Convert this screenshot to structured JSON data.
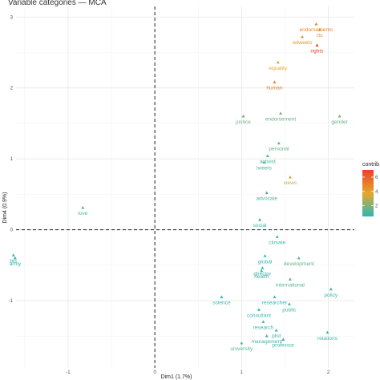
{
  "chart_data": {
    "type": "scatter",
    "title": "Variable categories — MCA",
    "xlabel": "Dim1 (1.7%)",
    "ylabel": "Dim4 (0.9%)",
    "xlim": [
      -1.6,
      2.3
    ],
    "ylim": [
      -1.95,
      3.15
    ],
    "xticks": [
      -1,
      0,
      1,
      2
    ],
    "yticks": [
      -1,
      0,
      1,
      2,
      3
    ],
    "grid": true,
    "reference_lines": {
      "x": 0,
      "y": 0,
      "style": "dashed"
    },
    "color_scale": {
      "title": "contrib",
      "ticks": [
        2,
        4,
        6
      ],
      "range": [
        0.5,
        7
      ],
      "colors": [
        "#2ab7b5",
        "#e6a72a",
        "#e8412b"
      ],
      "placement": "right"
    },
    "points": [
      {
        "label": "endorsements",
        "x": 1.86,
        "y": 2.9,
        "contrib": 4.8
      },
      {
        "label": "retweets",
        "x": 1.7,
        "y": 2.72,
        "contrib": 4.5
      },
      {
        "label": "rts",
        "x": 1.9,
        "y": 2.82,
        "contrib": 4.7
      },
      {
        "label": "rights",
        "x": 1.87,
        "y": 2.6,
        "contrib": 6.8
      },
      {
        "label": "equality",
        "x": 1.42,
        "y": 2.36,
        "contrib": 3.8
      },
      {
        "label": "human",
        "x": 1.38,
        "y": 2.08,
        "contrib": 5.0
      },
      {
        "label": "justice",
        "x": 1.02,
        "y": 1.6,
        "contrib": 1.7
      },
      {
        "label": "endorsement",
        "x": 1.45,
        "y": 1.64,
        "contrib": 1.6
      },
      {
        "label": "gender",
        "x": 2.13,
        "y": 1.6,
        "contrib": 1.7
      },
      {
        "label": "personal",
        "x": 1.43,
        "y": 1.22,
        "contrib": 1.6
      },
      {
        "label": "activist",
        "x": 1.3,
        "y": 1.04,
        "contrib": 1.2
      },
      {
        "label": "tweets",
        "x": 1.26,
        "y": 0.95,
        "contrib": 1.1
      },
      {
        "label": "views",
        "x": 1.56,
        "y": 0.74,
        "contrib": 3.2
      },
      {
        "label": "advocate",
        "x": 1.29,
        "y": 0.52,
        "contrib": 0.9
      },
      {
        "label": "love",
        "x": -0.83,
        "y": 0.31,
        "contrib": 1.0
      },
      {
        "label": "social",
        "x": 1.21,
        "y": 0.14,
        "contrib": 0.8
      },
      {
        "label": "climate",
        "x": 1.41,
        "y": -0.1,
        "contrib": 0.8
      },
      {
        "label": "bts",
        "x": -1.63,
        "y": -0.36,
        "contrib": 0.7
      },
      {
        "label": "army",
        "x": -1.61,
        "y": -0.4,
        "contrib": 0.7
      },
      {
        "label": "global",
        "x": 1.27,
        "y": -0.37,
        "contrib": 0.6
      },
      {
        "label": "development",
        "x": 1.66,
        "y": -0.4,
        "contrib": 1.5
      },
      {
        "label": "director",
        "x": 1.24,
        "y": -0.54,
        "contrib": 0.7
      },
      {
        "label": "health",
        "x": 1.23,
        "y": -0.58,
        "contrib": 0.8
      },
      {
        "label": "international",
        "x": 1.56,
        "y": -0.7,
        "contrib": 1.3
      },
      {
        "label": "policy",
        "x": 2.03,
        "y": -0.84,
        "contrib": 0.8
      },
      {
        "label": "researcher",
        "x": 1.38,
        "y": -0.95,
        "contrib": 0.6
      },
      {
        "label": "science",
        "x": 0.77,
        "y": -0.95,
        "contrib": 0.6
      },
      {
        "label": "public",
        "x": 1.55,
        "y": -1.05,
        "contrib": 0.9
      },
      {
        "label": "consultant",
        "x": 1.2,
        "y": -1.13,
        "contrib": 0.6
      },
      {
        "label": "research",
        "x": 1.25,
        "y": -1.3,
        "contrib": 0.8
      },
      {
        "label": "phd",
        "x": 1.4,
        "y": -1.42,
        "contrib": 0.8
      },
      {
        "label": "relations",
        "x": 1.99,
        "y": -1.45,
        "contrib": 0.7
      },
      {
        "label": "management",
        "x": 1.29,
        "y": -1.5,
        "contrib": 0.8
      },
      {
        "label": "professor",
        "x": 1.48,
        "y": -1.55,
        "contrib": 0.8
      },
      {
        "label": "university",
        "x": 1.0,
        "y": -1.6,
        "contrib": 1.3
      }
    ]
  }
}
